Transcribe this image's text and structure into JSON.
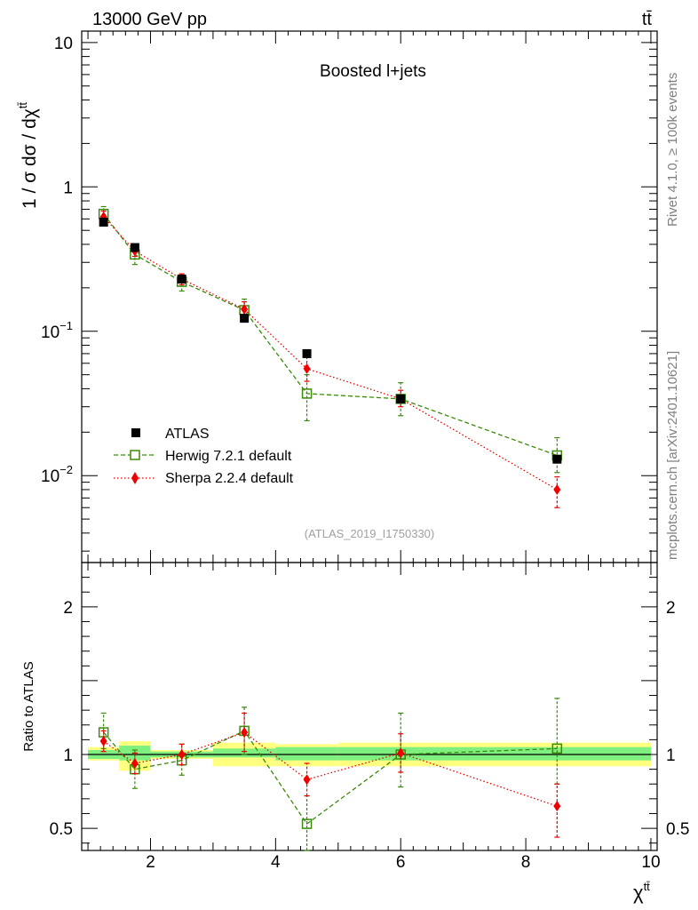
{
  "header": {
    "energy_label": "13000 GeV pp",
    "process_label": "tt̄",
    "side_label_top": "Rivet 4.1.0, ≥ 100k events",
    "side_label_bottom": "mcplots.cern.ch [arXiv:2401.10621]"
  },
  "chart_data": [
    {
      "type": "scatter",
      "panel": "main",
      "title": "Boosted l+jets",
      "watermark": "(ATLAS_2019_I1750330)",
      "ylabel": "1 / σ dσ / dχ",
      "ylabel_sup": "tt̄",
      "yscale": "log",
      "ylim": [
        0.0025,
        12
      ],
      "xlim": [
        0.9,
        10.1
      ],
      "yticks": [
        {
          "v": 10,
          "label": "10"
        },
        {
          "v": 1,
          "label": "1"
        },
        {
          "v": 0.1,
          "label": "10",
          "exp": "−1"
        },
        {
          "v": 0.01,
          "label": "10",
          "exp": "−2"
        }
      ],
      "series": [
        {
          "name": "ATLAS",
          "marker": "square-filled",
          "color": "#000000",
          "x": [
            1.25,
            1.75,
            2.5,
            3.5,
            4.5,
            6.0,
            8.5
          ],
          "y": [
            0.57,
            0.38,
            0.23,
            0.123,
            0.07,
            0.034,
            0.013
          ]
        },
        {
          "name": "Herwig 7.2.1 default",
          "marker": "square-open",
          "color": "#3a8a0a",
          "line": "dashed",
          "x": [
            1.25,
            1.75,
            2.5,
            3.5,
            4.5,
            6.0,
            8.5
          ],
          "y": [
            0.65,
            0.34,
            0.22,
            0.14,
            0.037,
            0.034,
            0.0138
          ],
          "yerr_lo": [
            0.59,
            0.29,
            0.19,
            0.123,
            0.024,
            0.026,
            0.0105
          ],
          "yerr_hi": [
            0.73,
            0.39,
            0.25,
            0.167,
            0.05,
            0.044,
            0.0183
          ]
        },
        {
          "name": "Sherpa 2.2.4 default",
          "marker": "diamond",
          "color": "#ee0000",
          "line": "dotted",
          "x": [
            1.25,
            1.75,
            2.5,
            3.5,
            4.5,
            6.0,
            8.5
          ],
          "y": [
            0.62,
            0.36,
            0.23,
            0.142,
            0.055,
            0.034,
            0.008
          ],
          "yerr_lo": [
            0.57,
            0.33,
            0.21,
            0.125,
            0.045,
            0.03,
            0.006
          ],
          "yerr_hi": [
            0.68,
            0.39,
            0.25,
            0.16,
            0.066,
            0.039,
            0.0098
          ]
        }
      ]
    },
    {
      "type": "scatter",
      "panel": "ratio",
      "ylabel": "Ratio to ATLAS",
      "xlabel": "χ",
      "xlabel_sup": "tt̄",
      "ylim": [
        0.35,
        2.3
      ],
      "xlim": [
        0.9,
        10.1
      ],
      "yticks": [
        {
          "v": 2,
          "label": "2"
        },
        {
          "v": 1,
          "label": "1"
        },
        {
          "v": 0.5,
          "label": "0.5"
        }
      ],
      "xticks": [
        {
          "v": 2,
          "label": "2"
        },
        {
          "v": 4,
          "label": "4"
        },
        {
          "v": 6,
          "label": "6"
        },
        {
          "v": 8,
          "label": "8"
        },
        {
          "v": 10,
          "label": "10"
        }
      ],
      "bands": {
        "bins": [
          [
            1.0,
            1.5
          ],
          [
            1.5,
            2.0
          ],
          [
            2.0,
            3.0
          ],
          [
            3.0,
            4.0
          ],
          [
            4.0,
            5.0
          ],
          [
            5.0,
            7.0
          ],
          [
            7.0,
            10.0
          ]
        ],
        "stat": [
          [
            0.97,
            1.03
          ],
          [
            0.96,
            1.06
          ],
          [
            0.98,
            1.02
          ],
          [
            0.98,
            1.04
          ],
          [
            0.96,
            1.05
          ],
          [
            0.96,
            1.05
          ],
          [
            0.96,
            1.05
          ]
        ],
        "total": [
          [
            0.96,
            1.05
          ],
          [
            0.89,
            1.09
          ],
          [
            0.97,
            1.03
          ],
          [
            0.92,
            1.08
          ],
          [
            0.92,
            1.07
          ],
          [
            0.92,
            1.08
          ],
          [
            0.92,
            1.08
          ]
        ],
        "stat_color": "#7ff07f",
        "total_color": "#ffff80"
      },
      "series": [
        {
          "name": "Herwig 7.2.1 default",
          "marker": "square-open",
          "color": "#3a8a0a",
          "line": "dashed",
          "x": [
            1.25,
            1.75,
            2.5,
            3.5,
            4.5,
            6.0,
            8.5
          ],
          "y": [
            1.15,
            0.9,
            0.96,
            1.16,
            0.53,
            1.0,
            1.04
          ],
          "yerr_lo": [
            1.04,
            0.77,
            0.86,
            1.0,
            0.35,
            0.78,
            0.8
          ],
          "yerr_hi": [
            1.28,
            1.03,
            1.07,
            1.32,
            0.72,
            1.28,
            1.38
          ]
        },
        {
          "name": "Sherpa 2.2.4 default",
          "marker": "diamond",
          "color": "#ee0000",
          "line": "dotted",
          "x": [
            1.25,
            1.75,
            2.5,
            3.5,
            4.5,
            6.0,
            8.5
          ],
          "y": [
            1.09,
            0.94,
            1.0,
            1.15,
            0.83,
            1.01,
            0.65
          ],
          "yerr_lo": [
            1.02,
            0.87,
            0.93,
            1.02,
            0.72,
            0.88,
            0.44
          ],
          "yerr_hi": [
            1.16,
            1.01,
            1.07,
            1.28,
            0.94,
            1.14,
            0.8
          ]
        }
      ]
    }
  ]
}
